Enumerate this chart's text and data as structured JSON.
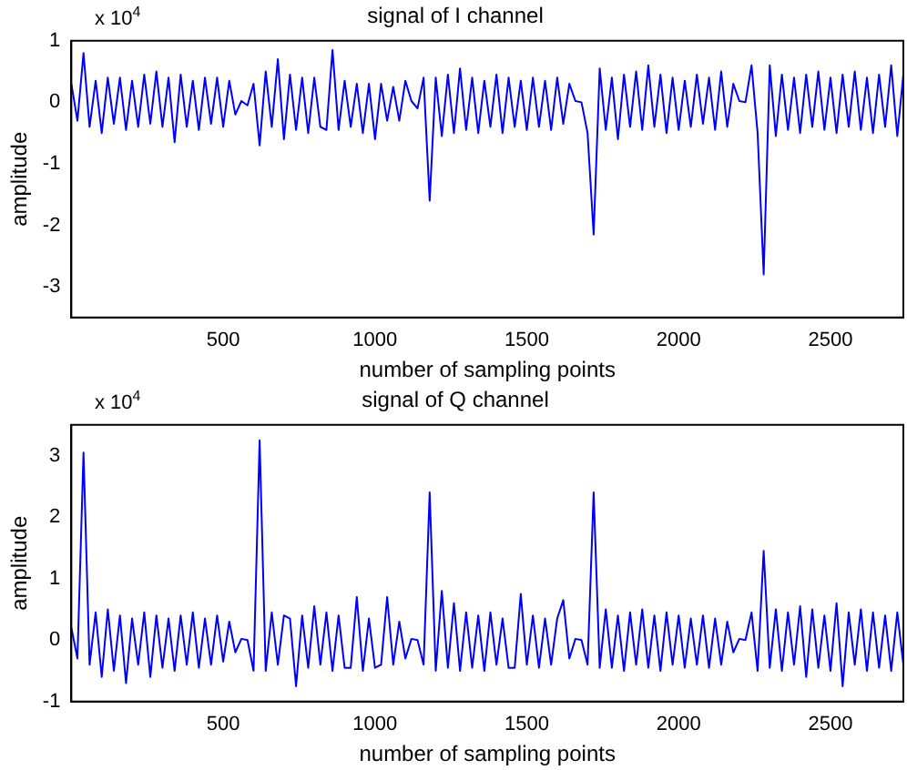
{
  "chart_data": [
    {
      "type": "line",
      "title": "signal of I channel",
      "xlabel": "number of sampling points",
      "ylabel": "amplitude",
      "annotations": [
        "x 10$^{4}$"
      ],
      "color": "#0000ff",
      "grid": false,
      "xlim": [
        0,
        2740
      ],
      "xticks": [
        500,
        1000,
        1500,
        2000,
        2500
      ],
      "ylim": [
        -3.5,
        1
      ],
      "yticks": [
        -3,
        -2,
        -1,
        0,
        1
      ],
      "x": [
        0,
        20,
        40,
        60,
        80,
        100,
        120,
        140,
        160,
        180,
        200,
        220,
        240,
        260,
        280,
        300,
        320,
        340,
        360,
        380,
        400,
        420,
        440,
        460,
        480,
        500,
        520,
        540,
        560,
        580,
        600,
        620,
        640,
        660,
        680,
        700,
        720,
        740,
        760,
        780,
        800,
        820,
        840,
        860,
        880,
        900,
        920,
        940,
        960,
        980,
        1000,
        1020,
        1040,
        1060,
        1080,
        1100,
        1120,
        1140,
        1160,
        1180,
        1200,
        1220,
        1240,
        1260,
        1280,
        1300,
        1320,
        1340,
        1360,
        1380,
        1400,
        1420,
        1440,
        1460,
        1480,
        1500,
        1520,
        1540,
        1560,
        1580,
        1600,
        1620,
        1640,
        1660,
        1680,
        1700,
        1720,
        1740,
        1760,
        1780,
        1800,
        1820,
        1840,
        1860,
        1880,
        1900,
        1920,
        1940,
        1960,
        1980,
        2000,
        2020,
        2040,
        2060,
        2080,
        2100,
        2120,
        2140,
        2160,
        2180,
        2200,
        2220,
        2240,
        2260,
        2280,
        2300,
        2320,
        2340,
        2360,
        2380,
        2400,
        2420,
        2440,
        2460,
        2480,
        2500,
        2520,
        2540,
        2560,
        2580,
        2600,
        2620,
        2640,
        2660,
        2680,
        2700,
        2720,
        2740
      ],
      "values": [
        0.3,
        -0.3,
        0.8,
        -0.4,
        0.35,
        -0.5,
        0.4,
        -0.35,
        0.4,
        -0.45,
        0.35,
        -0.4,
        0.45,
        -0.35,
        0.5,
        -0.4,
        0.4,
        -0.65,
        0.45,
        -0.4,
        0.35,
        -0.45,
        0.4,
        -0.35,
        0.4,
        -0.4,
        0.35,
        -0.2,
        0.02,
        -0.05,
        0.3,
        -0.7,
        0.5,
        -0.4,
        0.7,
        -0.6,
        0.45,
        -0.45,
        0.4,
        -0.5,
        0.4,
        -0.4,
        -0.45,
        0.85,
        -0.45,
        0.35,
        -0.4,
        0.3,
        -0.5,
        0.3,
        -0.6,
        0.3,
        -0.3,
        0.25,
        -0.3,
        0.35,
        0.02,
        -0.1,
        0.4,
        -1.6,
        0.4,
        -0.55,
        0.45,
        -0.5,
        0.55,
        -0.45,
        0.4,
        -0.5,
        0.35,
        -0.4,
        0.45,
        -0.5,
        0.4,
        -0.4,
        0.35,
        -0.45,
        0.4,
        -0.4,
        0.35,
        -0.45,
        0.4,
        -0.35,
        0.3,
        0.02,
        0,
        -0.5,
        -2.15,
        0.55,
        -0.45,
        0.4,
        -0.6,
        0.45,
        -0.4,
        0.5,
        -0.45,
        0.6,
        -0.4,
        0.45,
        -0.5,
        0.4,
        -0.45,
        0.35,
        -0.4,
        0.45,
        -0.35,
        0.4,
        -0.45,
        0.5,
        -0.4,
        0.3,
        0.02,
        0,
        0.6,
        -0.5,
        -2.8,
        0.6,
        -0.55,
        0.45,
        -0.45,
        0.4,
        -0.5,
        0.45,
        -0.4,
        0.5,
        -0.45,
        0.4,
        -0.5,
        0.45,
        -0.4,
        0.5,
        -0.45,
        0.4,
        -0.5,
        0.45,
        -0.4,
        0.6,
        -0.55,
        0.45
      ]
    },
    {
      "type": "line",
      "title": "signal of Q channel",
      "xlabel": "number of sampling points",
      "ylabel": "amplitude",
      "annotations": [
        "x 10$^{4}$"
      ],
      "color": "#0000ff",
      "grid": false,
      "xlim": [
        0,
        2740
      ],
      "xticks": [
        500,
        1000,
        1500,
        2000,
        2500
      ],
      "ylim": [
        -1,
        3.5
      ],
      "yticks": [
        -1,
        0,
        1,
        2,
        3
      ],
      "x": [
        0,
        20,
        40,
        60,
        80,
        100,
        120,
        140,
        160,
        180,
        200,
        220,
        240,
        260,
        280,
        300,
        320,
        340,
        360,
        380,
        400,
        420,
        440,
        460,
        480,
        500,
        520,
        540,
        560,
        580,
        600,
        620,
        640,
        660,
        680,
        700,
        720,
        740,
        760,
        780,
        800,
        820,
        840,
        860,
        880,
        900,
        920,
        940,
        960,
        980,
        1000,
        1020,
        1040,
        1060,
        1080,
        1100,
        1120,
        1140,
        1160,
        1180,
        1200,
        1220,
        1240,
        1260,
        1280,
        1300,
        1320,
        1340,
        1360,
        1380,
        1400,
        1420,
        1440,
        1460,
        1480,
        1500,
        1520,
        1540,
        1560,
        1580,
        1600,
        1620,
        1640,
        1660,
        1680,
        1700,
        1720,
        1740,
        1760,
        1780,
        1800,
        1820,
        1840,
        1860,
        1880,
        1900,
        1920,
        1940,
        1960,
        1980,
        2000,
        2020,
        2040,
        2060,
        2080,
        2100,
        2120,
        2140,
        2160,
        2180,
        2200,
        2220,
        2240,
        2260,
        2280,
        2300,
        2320,
        2340,
        2360,
        2380,
        2400,
        2420,
        2440,
        2460,
        2480,
        2500,
        2520,
        2540,
        2560,
        2580,
        2600,
        2620,
        2640,
        2660,
        2680,
        2700,
        2720,
        2740
      ],
      "values": [
        0.2,
        -0.3,
        3.05,
        -0.4,
        0.45,
        -0.6,
        0.5,
        -0.5,
        0.4,
        -0.7,
        0.35,
        -0.4,
        0.45,
        -0.6,
        0.4,
        -0.45,
        0.35,
        -0.5,
        0.4,
        -0.4,
        0.45,
        -0.45,
        0.35,
        -0.4,
        0.4,
        -0.35,
        0.3,
        -0.2,
        0.02,
        0,
        -0.5,
        3.25,
        -0.5,
        0.45,
        -0.4,
        0.4,
        0.35,
        -0.75,
        0.4,
        -0.45,
        0.55,
        -0.4,
        0.45,
        -0.5,
        0.4,
        -0.45,
        -0.45,
        0.7,
        -0.5,
        0.35,
        -0.45,
        -0.4,
        0.7,
        -0.4,
        0.3,
        -0.3,
        0.02,
        0,
        -0.4,
        2.4,
        -0.5,
        0.8,
        -0.45,
        0.6,
        -0.5,
        0.45,
        -0.45,
        0.4,
        -0.5,
        0.45,
        -0.4,
        0.35,
        -0.45,
        -0.45,
        0.75,
        -0.4,
        0.4,
        -0.45,
        0.35,
        -0.4,
        0.35,
        0.65,
        -0.3,
        0.02,
        0,
        -0.4,
        2.4,
        -0.45,
        0.5,
        -0.45,
        0.4,
        -0.5,
        0.45,
        -0.4,
        0.5,
        -0.45,
        0.4,
        -0.5,
        0.45,
        -0.4,
        0.4,
        -0.45,
        0.35,
        -0.4,
        0.4,
        -0.45,
        0.35,
        -0.4,
        0.3,
        -0.2,
        0.02,
        0,
        0.45,
        -0.5,
        1.45,
        -0.45,
        0.5,
        -0.5,
        0.45,
        -0.4,
        0.55,
        -0.6,
        0.5,
        -0.45,
        0.4,
        -0.5,
        0.6,
        -0.75,
        0.45,
        -0.4,
        0.5,
        -0.5,
        0.45,
        -0.45,
        0.4,
        -0.5,
        0.45,
        -0.4
      ]
    }
  ]
}
